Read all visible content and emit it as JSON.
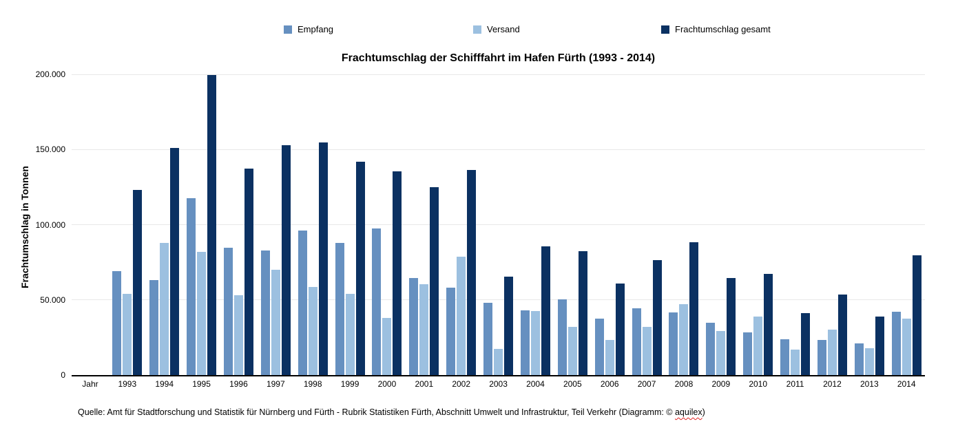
{
  "title": "Frachtumschlag der Schifffahrt im Hafen Fürth (1993 - 2014)",
  "y_axis": {
    "title": "Frachtumschlag in Tonnen",
    "ticks": [
      "200.000",
      "150.000",
      "100.000",
      "50.000",
      "0"
    ]
  },
  "x_axis": {
    "first_label": "Jahr"
  },
  "source": {
    "text": "Quelle: Amt für Stadtforschung und Statistik für Nürnberg und Fürth - Rubrik Statistiken Fürth, Abschnitt Umwelt und Infrastruktur, Teil Verkehr  (Diagramm: © ",
    "credit": "aquilex",
    "suffix": ")"
  },
  "colors": {
    "grid": "#e8e8e8",
    "axis": "#000000",
    "spellcheck_underline": "#e02020"
  },
  "chart_data": {
    "type": "bar",
    "title": "Frachtumschlag der Schifffahrt im Hafen Fürth (1993 - 2014)",
    "xlabel": "Jahr",
    "ylabel": "Frachtumschlag in Tonnen",
    "ylim": [
      0,
      200000
    ],
    "y_tick_step": 50000,
    "grid": true,
    "legend_position": "top",
    "categories": [
      1993,
      1994,
      1995,
      1996,
      1997,
      1998,
      1999,
      2000,
      2001,
      2002,
      2003,
      2004,
      2005,
      2006,
      2007,
      2008,
      2009,
      2010,
      2011,
      2012,
      2013,
      2014
    ],
    "series": [
      {
        "name": "Empfang",
        "color": "#6690C0",
        "values": [
          69000,
          63000,
          117500,
          84500,
          83000,
          96000,
          88000,
          97500,
          64500,
          58000,
          48000,
          43000,
          50500,
          37500,
          44500,
          41500,
          35000,
          28500,
          24000,
          23500,
          21000,
          42000
        ]
      },
      {
        "name": "Versand",
        "color": "#9CC0E0",
        "values": [
          54000,
          88000,
          82000,
          53000,
          70000,
          58500,
          54000,
          38000,
          60500,
          78500,
          17500,
          42500,
          32000,
          23500,
          32000,
          47000,
          29500,
          39000,
          17000,
          30000,
          18000,
          37500
        ]
      },
      {
        "name": "Frachtumschlag gesamt",
        "color": "#0B3162",
        "values": [
          123000,
          151000,
          199500,
          137500,
          153000,
          154500,
          142000,
          135500,
          125000,
          136500,
          65500,
          85500,
          82500,
          61000,
          76500,
          88500,
          64500,
          67500,
          41000,
          53500,
          39000,
          79500
        ]
      }
    ]
  }
}
